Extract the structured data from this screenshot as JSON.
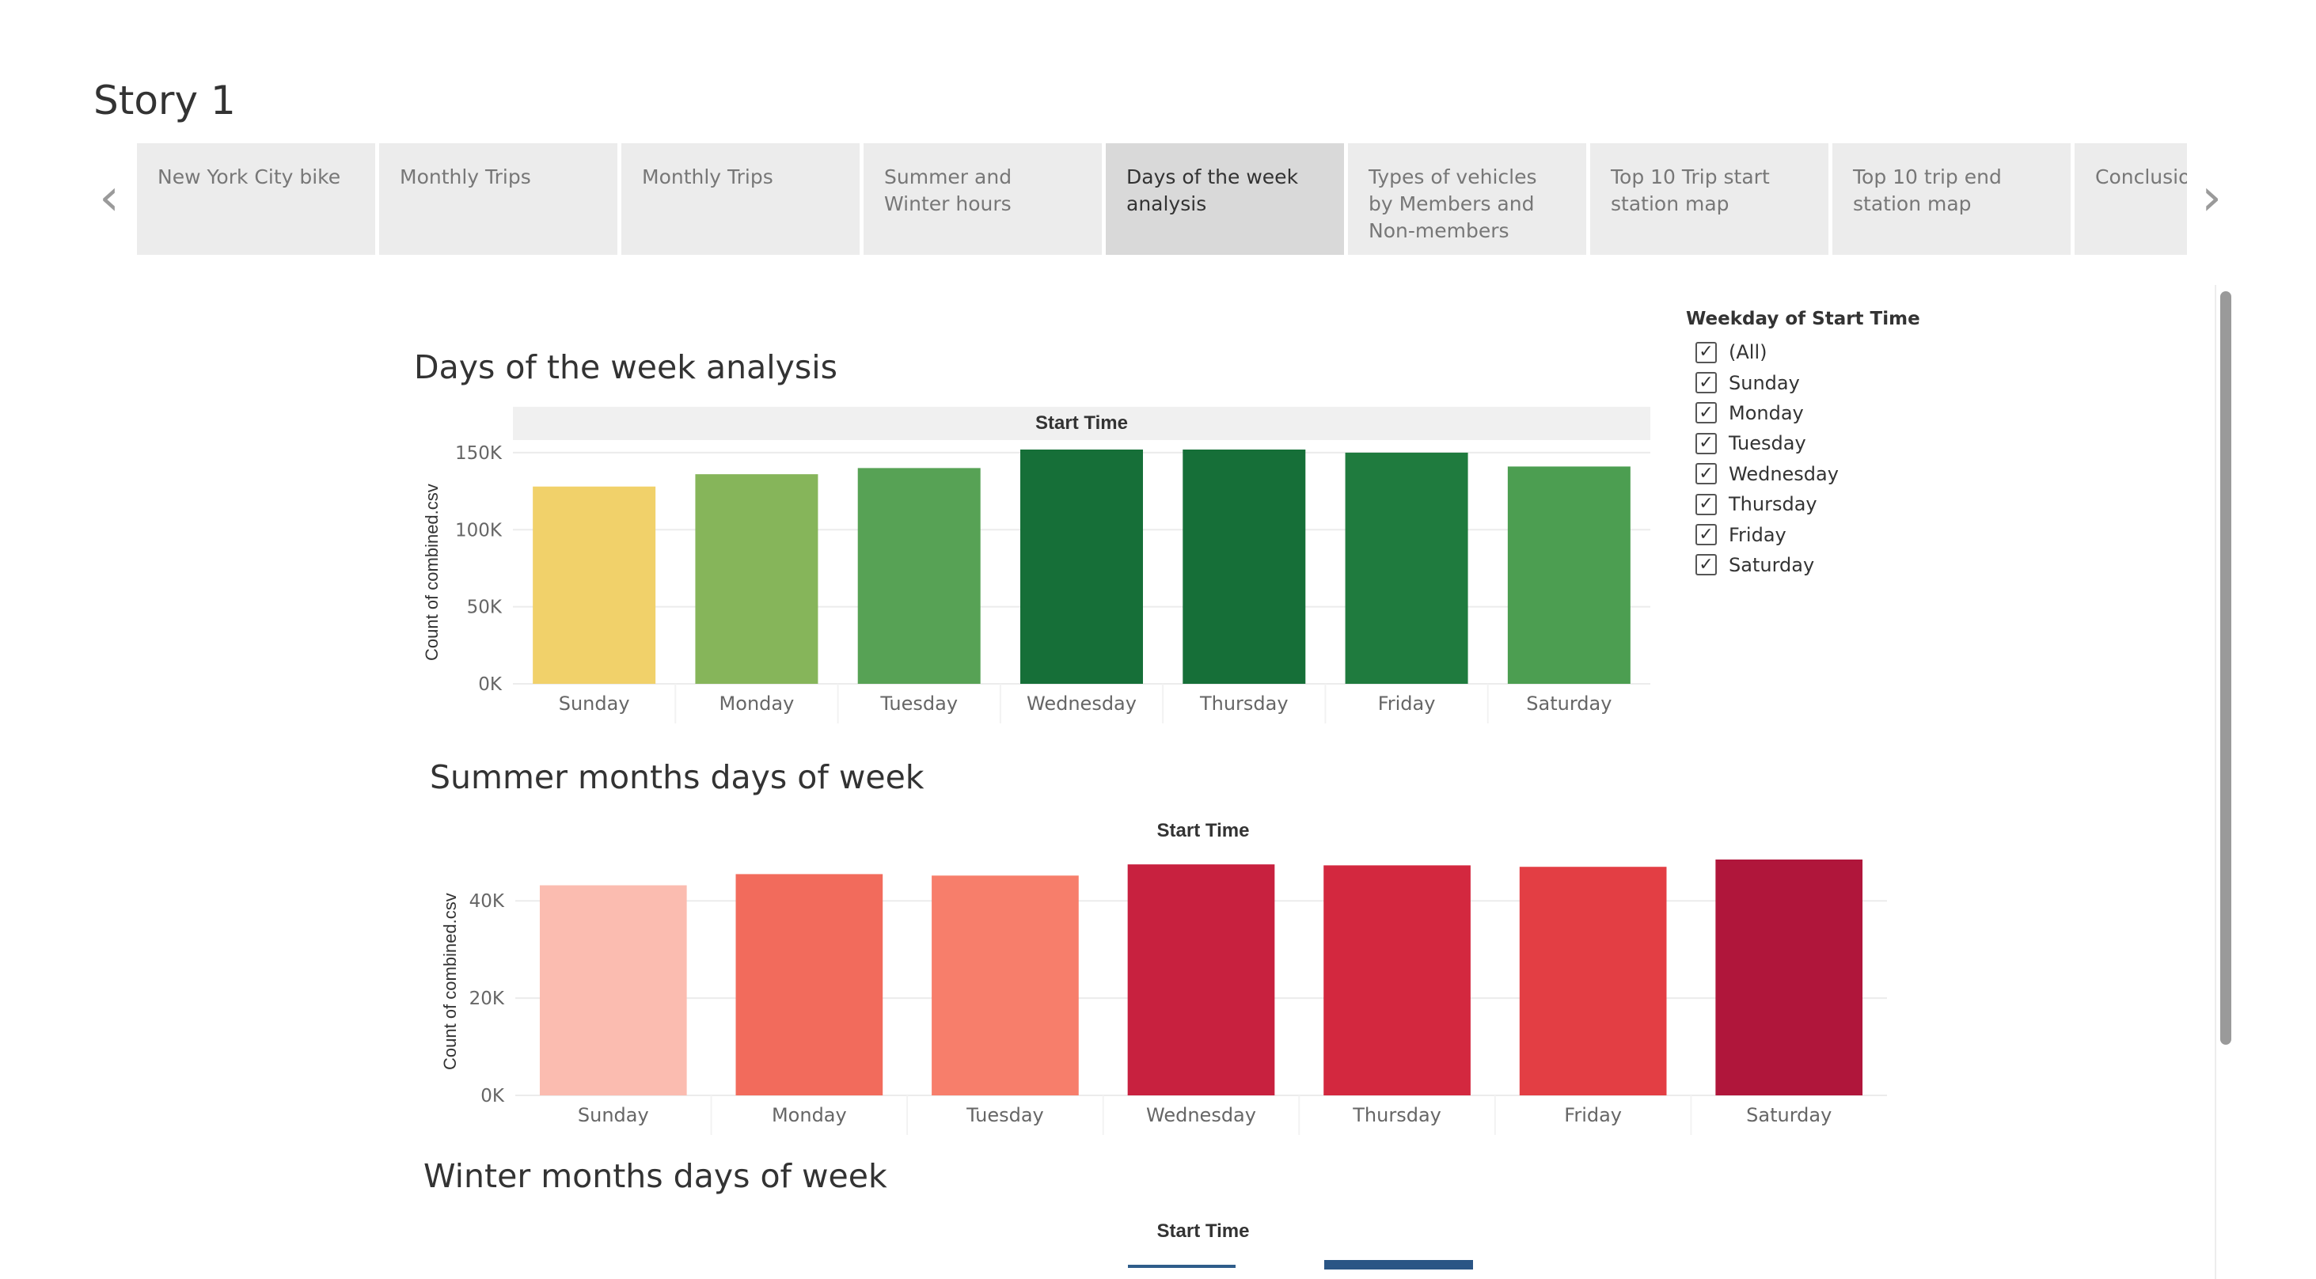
{
  "story": {
    "title": "Story 1"
  },
  "nav": {
    "prev_icon": "‹",
    "next_icon": "›"
  },
  "tabs": [
    {
      "label": "New York City bike",
      "active": false
    },
    {
      "label": "Monthly Trips",
      "active": false
    },
    {
      "label": "Monthly Trips",
      "active": false
    },
    {
      "label": "Summer and Winter hours",
      "active": false
    },
    {
      "label": "Days of the week analysis",
      "active": true
    },
    {
      "label": "Types of vehicles by Members and Non-members",
      "active": false
    },
    {
      "label": "Top 10 Trip start station map",
      "active": false
    },
    {
      "label": "Top 10 trip end station map",
      "active": false
    },
    {
      "label": "Conclusion",
      "active": false
    }
  ],
  "filter": {
    "title": "Weekday of Start Time",
    "check_glyph": "✓",
    "items": [
      "(All)",
      "Sunday",
      "Monday",
      "Tuesday",
      "Wednesday",
      "Thursday",
      "Friday",
      "Saturday"
    ]
  },
  "chart_data": [
    {
      "type": "bar",
      "title": "Days of the week analysis",
      "header": "Start Time",
      "ylabel": "Count of combined.csv",
      "categories": [
        "Sunday",
        "Monday",
        "Tuesday",
        "Wednesday",
        "Thursday",
        "Friday",
        "Saturday"
      ],
      "values": [
        128000,
        136000,
        140000,
        152000,
        152000,
        150000,
        141000
      ],
      "colors": [
        "#f1d16a",
        "#86b55a",
        "#57a255",
        "#166f38",
        "#166f38",
        "#1f7b3e",
        "#4c9e51"
      ],
      "yticks": [
        0,
        50000,
        100000,
        150000
      ],
      "ytick_labels": [
        "0K",
        "50K",
        "100K",
        "150K"
      ],
      "ylim": [
        0,
        152000
      ]
    },
    {
      "type": "bar",
      "title": "Summer months days of week",
      "header": "Start Time",
      "ylabel": "Count of combined.csv",
      "categories": [
        "Sunday",
        "Monday",
        "Tuesday",
        "Wednesday",
        "Thursday",
        "Friday",
        "Saturday"
      ],
      "values": [
        43200,
        45500,
        45200,
        47500,
        47300,
        47000,
        48500
      ],
      "colors": [
        "#fbbcb0",
        "#f26b5c",
        "#f77e6b",
        "#c8213f",
        "#d3283f",
        "#e33e44",
        "#b0163b"
      ],
      "yticks": [
        0,
        20000,
        40000
      ],
      "ytick_labels": [
        "0K",
        "20K",
        "40K"
      ],
      "ylim": [
        0,
        48500
      ]
    },
    {
      "type": "bar",
      "title": "Winter months days of week",
      "header": "Start Time",
      "categories": [],
      "values": []
    }
  ]
}
